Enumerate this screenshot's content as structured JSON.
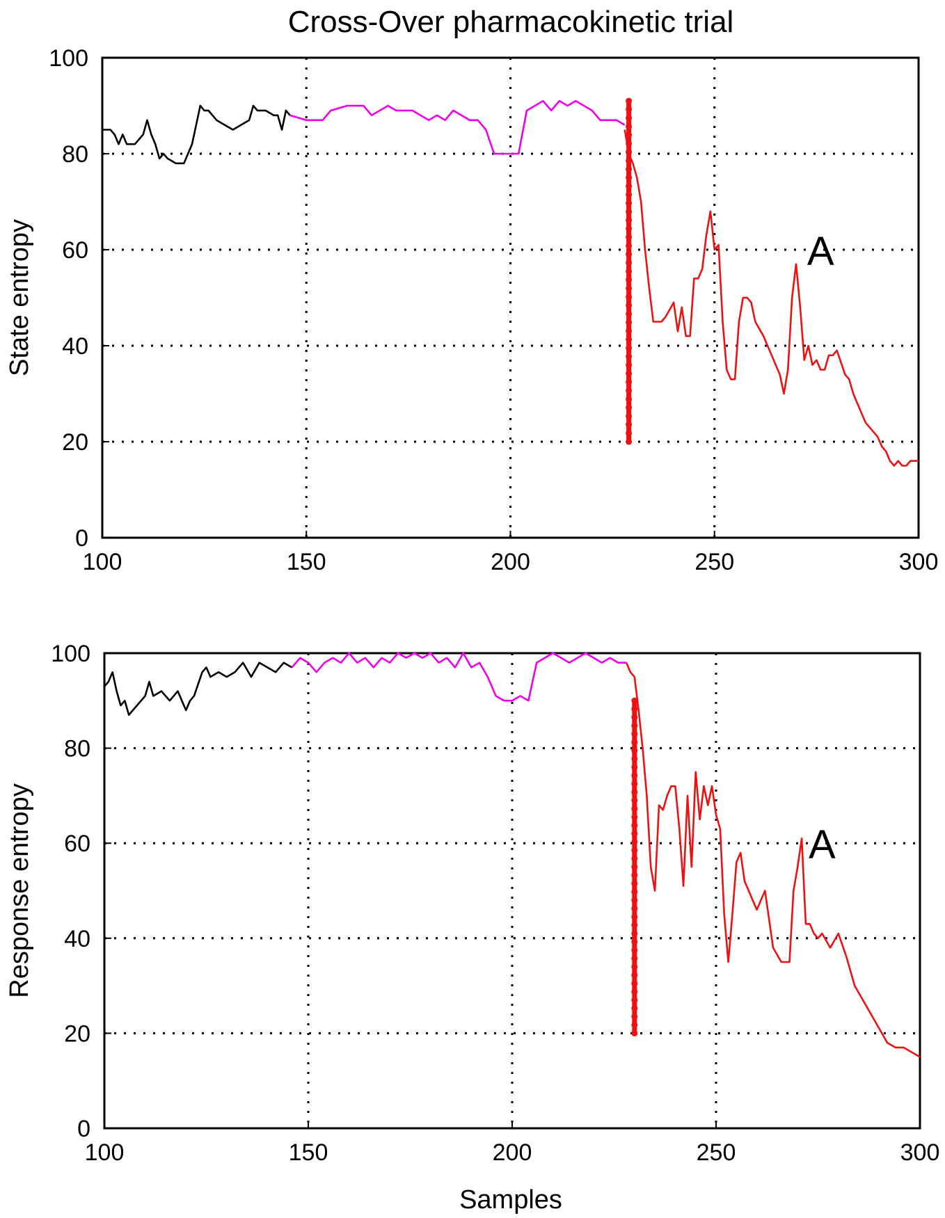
{
  "figure": {
    "title": "Cross-Over pharmacokinetic trial",
    "xlabel": "Samples"
  },
  "colors": {
    "segment1": "#000000",
    "segment2": "#ee00ee",
    "segment3": "#ee1111",
    "grid": "#000000",
    "marker": "#ee1111"
  },
  "chart_data": [
    {
      "type": "line",
      "panel": "top",
      "title": "Cross-Over pharmacokinetic trial",
      "xlabel": "",
      "ylabel": "State entropy",
      "xlim": [
        100,
        300
      ],
      "ylim": [
        0,
        100
      ],
      "xticks": [
        100,
        150,
        200,
        250,
        300
      ],
      "yticks": [
        0,
        20,
        40,
        60,
        80,
        100
      ],
      "grid": true,
      "annotation": {
        "text": "A",
        "x": 276,
        "y": 60
      },
      "marker_line": {
        "x": 229,
        "y_from": 20,
        "y_to": 91
      },
      "series": [
        {
          "segment": 1,
          "x": [
            100,
            102,
            103,
            104,
            105,
            106,
            108,
            110,
            111,
            112,
            113,
            114,
            115,
            116,
            118,
            120,
            122,
            123,
            124,
            125,
            126,
            128,
            130,
            132,
            134,
            136,
            137,
            138,
            140,
            142,
            143,
            144,
            145,
            146
          ],
          "y": [
            85,
            85,
            84,
            82,
            84,
            82,
            82,
            84,
            87,
            84,
            82,
            79,
            80,
            79,
            78,
            78,
            82,
            86,
            90,
            89,
            89,
            87,
            86,
            85,
            86,
            87,
            90,
            89,
            89,
            88,
            88,
            85,
            89,
            88
          ]
        },
        {
          "segment": 2,
          "x": [
            146,
            150,
            154,
            156,
            160,
            164,
            166,
            170,
            172,
            176,
            180,
            182,
            184,
            186,
            188,
            190,
            192,
            194,
            196,
            198,
            200,
            202,
            204,
            206,
            208,
            210,
            212,
            214,
            216,
            218,
            220,
            222,
            224,
            226,
            228
          ],
          "y": [
            88,
            87,
            87,
            89,
            90,
            90,
            88,
            90,
            89,
            89,
            87,
            88,
            87,
            89,
            88,
            87,
            87,
            85,
            80,
            80,
            80,
            80,
            89,
            90,
            91,
            89,
            91,
            90,
            91,
            90,
            89,
            87,
            87,
            87,
            86
          ]
        },
        {
          "segment": 3,
          "x": [
            228,
            229,
            230,
            231,
            232,
            233,
            234,
            235,
            236,
            237,
            238,
            240,
            241,
            242,
            243,
            244,
            245,
            246,
            247,
            248,
            249,
            250,
            251,
            252,
            253,
            254,
            255,
            256,
            257,
            258,
            259,
            260,
            262,
            263,
            264,
            265,
            266,
            267,
            268,
            269,
            270,
            271,
            272,
            273,
            274,
            275,
            276,
            277,
            278,
            279,
            280,
            282,
            283,
            284,
            285,
            286,
            287,
            288,
            289,
            290,
            291,
            292,
            293,
            294,
            295,
            296,
            297,
            298,
            299,
            300
          ],
          "y": [
            85,
            80,
            78,
            75,
            70,
            60,
            52,
            45,
            45,
            45,
            46,
            49,
            43,
            48,
            42,
            42,
            54,
            54,
            56,
            63,
            68,
            60,
            61,
            45,
            35,
            33,
            33,
            45,
            50,
            50,
            49,
            45,
            42,
            40,
            38,
            36,
            34,
            30,
            35,
            50,
            57,
            48,
            37,
            40,
            36,
            37,
            35,
            35,
            38,
            38,
            39,
            34,
            33,
            30,
            28,
            26,
            24,
            23,
            22,
            21,
            19,
            18,
            16,
            15,
            16,
            15,
            15,
            16,
            16,
            16
          ]
        }
      ]
    },
    {
      "type": "line",
      "panel": "bottom",
      "title": "",
      "xlabel": "Samples",
      "ylabel": "Response entropy",
      "xlim": [
        100,
        300
      ],
      "ylim": [
        0,
        100
      ],
      "xticks": [
        100,
        150,
        200,
        250,
        300
      ],
      "yticks": [
        0,
        20,
        40,
        60,
        80,
        100
      ],
      "grid": true,
      "annotation": {
        "text": "A",
        "x": 276,
        "y": 60
      },
      "marker_line": {
        "x": 230,
        "y_from": 20,
        "y_to": 90
      },
      "series": [
        {
          "segment": 1,
          "x": [
            100,
            101,
            102,
            103,
            104,
            105,
            106,
            107,
            108,
            110,
            111,
            112,
            114,
            116,
            118,
            120,
            121,
            122,
            124,
            125,
            126,
            128,
            130,
            132,
            134,
            136,
            138,
            140,
            142,
            144,
            146
          ],
          "y": [
            93,
            94,
            96,
            92,
            89,
            90,
            87,
            88,
            89,
            91,
            94,
            91,
            92,
            90,
            92,
            88,
            90,
            91,
            96,
            97,
            95,
            96,
            95,
            96,
            98,
            95,
            98,
            97,
            96,
            98,
            97
          ]
        },
        {
          "segment": 2,
          "x": [
            146,
            148,
            150,
            152,
            154,
            156,
            158,
            160,
            162,
            164,
            166,
            168,
            170,
            172,
            174,
            176,
            178,
            180,
            182,
            184,
            186,
            188,
            190,
            192,
            194,
            196,
            198,
            200,
            202,
            204,
            206,
            208,
            210,
            212,
            214,
            216,
            218,
            220,
            222,
            224,
            226,
            228
          ],
          "y": [
            97,
            99,
            98,
            96,
            98,
            99,
            98,
            100,
            98,
            99,
            97,
            99,
            98,
            100,
            99,
            100,
            99,
            100,
            98,
            99,
            97,
            100,
            97,
            98,
            95,
            91,
            90,
            90,
            91,
            90,
            98,
            99,
            100,
            99,
            98,
            99,
            100,
            99,
            98,
            99,
            98,
            98
          ]
        },
        {
          "segment": 3,
          "x": [
            228,
            229,
            230,
            231,
            232,
            233,
            234,
            235,
            236,
            237,
            238,
            239,
            240,
            241,
            242,
            243,
            244,
            245,
            246,
            247,
            248,
            249,
            250,
            251,
            252,
            253,
            254,
            255,
            256,
            257,
            258,
            259,
            260,
            262,
            264,
            266,
            268,
            269,
            270,
            271,
            272,
            273,
            274,
            275,
            276,
            278,
            280,
            282,
            284,
            286,
            288,
            290,
            292,
            294,
            296,
            298,
            300
          ],
          "y": [
            98,
            96,
            95,
            88,
            80,
            70,
            55,
            50,
            68,
            67,
            70,
            72,
            72,
            63,
            51,
            70,
            55,
            75,
            65,
            72,
            68,
            72,
            66,
            63,
            45,
            35,
            45,
            56,
            58,
            52,
            50,
            48,
            46,
            50,
            38,
            35,
            35,
            50,
            55,
            61,
            43,
            43,
            41,
            40,
            41,
            38,
            41,
            36,
            30,
            27,
            24,
            21,
            18,
            17,
            17,
            16,
            15
          ]
        }
      ]
    }
  ]
}
